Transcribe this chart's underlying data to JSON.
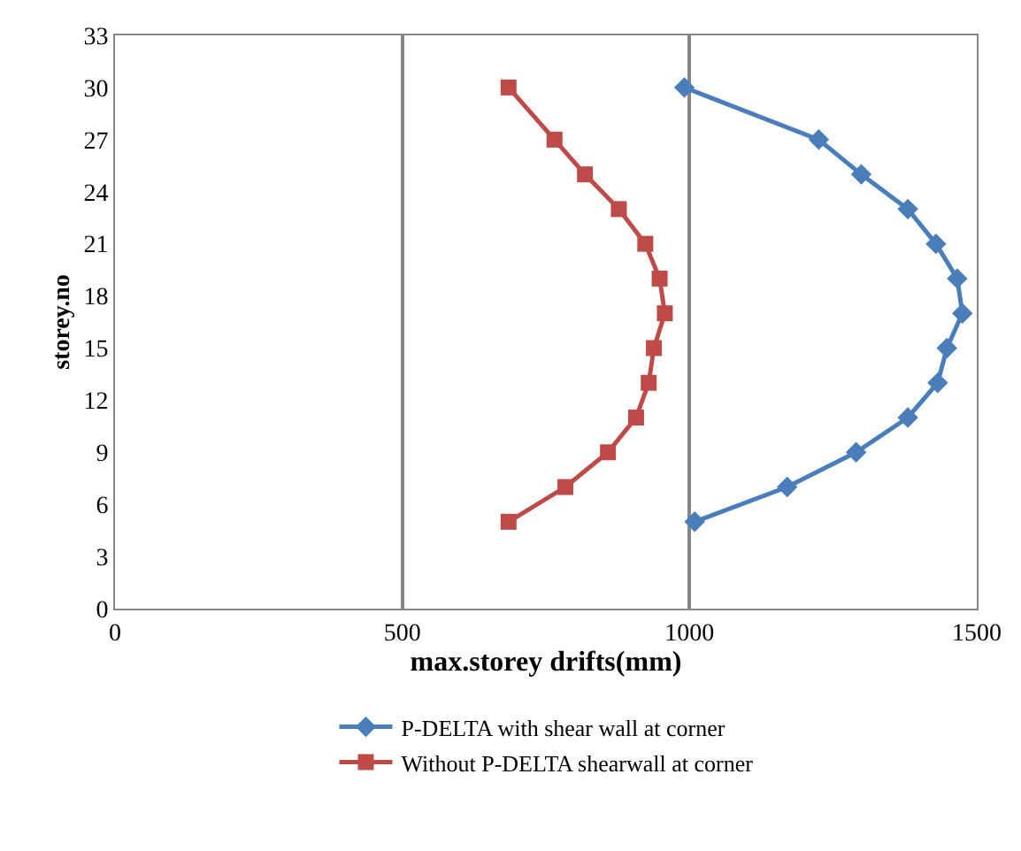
{
  "chart_data": {
    "type": "line",
    "xlabel": "max.storey drifts(mm)",
    "ylabel": "storey.no",
    "xlim": [
      0,
      1500
    ],
    "xticks": [
      0,
      500,
      1000,
      1500
    ],
    "ylim": [
      0,
      33
    ],
    "yticks": [
      0,
      3,
      6,
      9,
      12,
      15,
      18,
      21,
      24,
      27,
      30,
      33
    ],
    "grid": "x",
    "legend": "bottom",
    "line_style": "solid",
    "series": [
      {
        "name": "P-DELTA with shear wall at corner",
        "color": "#4a7ebb",
        "marker": "diamond",
        "x": [
          991,
          1225,
          1299,
          1380,
          1429,
          1466,
          1475,
          1448,
          1432,
          1380,
          1290,
          1170,
          1009
        ],
        "values": [
          30,
          27,
          25,
          23,
          21,
          19,
          17,
          15,
          13,
          11,
          9,
          7,
          5
        ]
      },
      {
        "name": "Without P-DELTA shearwall at corner",
        "color": "#be4b48",
        "marker": "square",
        "x": [
          685,
          765,
          818,
          877,
          923,
          948,
          957,
          938,
          929,
          907,
          858,
          784,
          685
        ],
        "values": [
          30,
          27,
          25,
          23,
          21,
          19,
          17,
          15,
          13,
          11,
          9,
          7,
          5
        ]
      }
    ]
  }
}
